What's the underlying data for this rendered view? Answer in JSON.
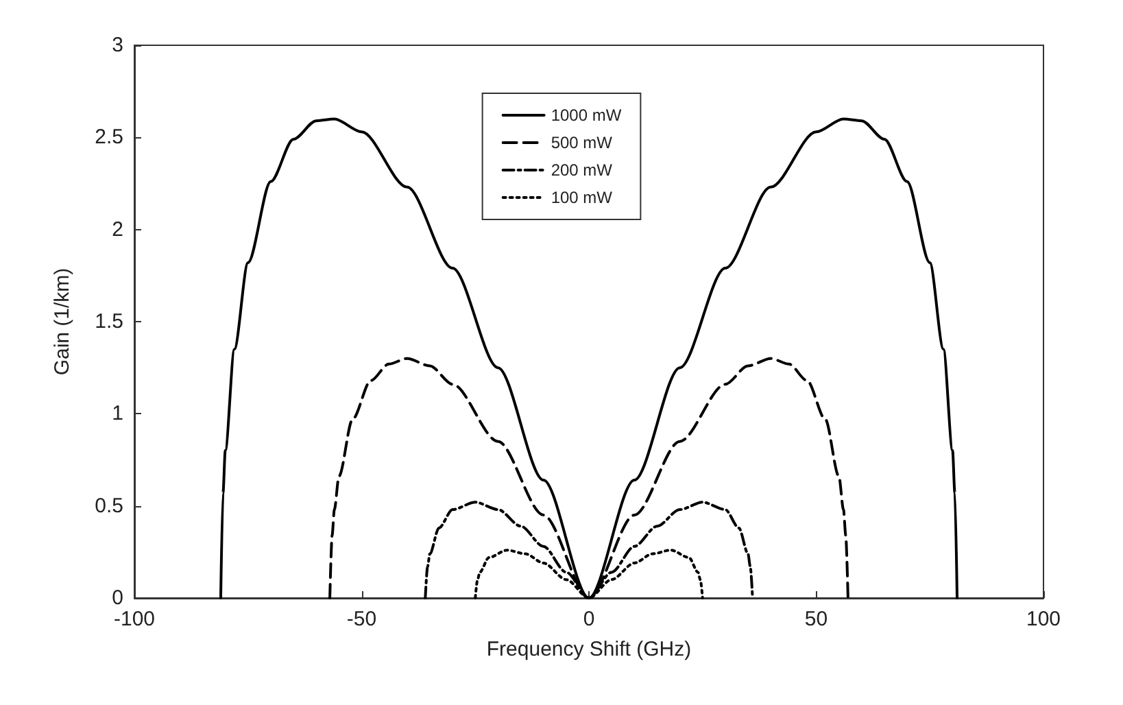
{
  "chart_data": {
    "type": "line",
    "xlabel": "Frequency Shift (GHz)",
    "ylabel": "Gain (1/km)",
    "xlim": [
      -100,
      100
    ],
    "xticks": [
      -100,
      -50,
      0,
      50,
      100
    ],
    "ylim": [
      0,
      3
    ],
    "yticks": [
      0,
      0.5,
      1,
      1.5,
      2,
      2.5,
      3
    ],
    "grid": false,
    "legend": "top",
    "marker": "none",
    "series": [
      {
        "name": "1000 mW",
        "color": "#000000",
        "line_style": "solid",
        "x": [
          -81,
          -80.5,
          -80,
          -78,
          -75,
          -70,
          -65,
          -60,
          -56,
          -50,
          -40,
          -30,
          -20,
          -10,
          0,
          10,
          20,
          30,
          40,
          50,
          56,
          60,
          65,
          70,
          75,
          78,
          80,
          80.5,
          81
        ],
        "values": [
          0,
          0.57,
          0.8,
          1.35,
          1.82,
          2.26,
          2.49,
          2.59,
          2.6,
          2.53,
          2.23,
          1.79,
          1.25,
          0.64,
          0,
          0.64,
          1.25,
          1.79,
          2.23,
          2.53,
          2.6,
          2.59,
          2.49,
          2.26,
          1.82,
          1.35,
          0.8,
          0.57,
          0
        ]
      },
      {
        "name": "500 mW",
        "color": "#000000",
        "line_style": "dashed",
        "x": [
          -57,
          -56.5,
          -56,
          -55,
          -52,
          -48,
          -44,
          -40,
          -35,
          -30,
          -20,
          -10,
          0,
          10,
          20,
          30,
          35,
          40,
          44,
          48,
          52,
          55,
          56,
          56.5,
          57
        ],
        "values": [
          0,
          0.34,
          0.48,
          0.66,
          0.97,
          1.18,
          1.27,
          1.3,
          1.26,
          1.16,
          0.85,
          0.45,
          0,
          0.45,
          0.85,
          1.16,
          1.26,
          1.3,
          1.27,
          1.18,
          0.97,
          0.66,
          0.48,
          0.34,
          0
        ]
      },
      {
        "name": "200 mW",
        "color": "#000000",
        "line_style": "dashdot",
        "x": [
          -36,
          -35.5,
          -35,
          -33,
          -30,
          -25,
          -20,
          -15,
          -10,
          -5,
          0,
          5,
          10,
          15,
          20,
          25,
          30,
          33,
          35,
          35.5,
          36
        ],
        "values": [
          0,
          0.17,
          0.24,
          0.38,
          0.48,
          0.52,
          0.48,
          0.39,
          0.28,
          0.14,
          0,
          0.14,
          0.28,
          0.39,
          0.48,
          0.52,
          0.48,
          0.38,
          0.24,
          0.17,
          0
        ]
      },
      {
        "name": "100 mW",
        "color": "#000000",
        "line_style": "dotted",
        "x": [
          -25,
          -24.5,
          -24,
          -22,
          -18,
          -14,
          -10,
          -5,
          0,
          5,
          10,
          14,
          18,
          22,
          24,
          24.5,
          25
        ],
        "values": [
          0,
          0.1,
          0.14,
          0.22,
          0.26,
          0.24,
          0.19,
          0.1,
          0,
          0.1,
          0.19,
          0.24,
          0.26,
          0.22,
          0.14,
          0.1,
          0
        ]
      }
    ]
  }
}
